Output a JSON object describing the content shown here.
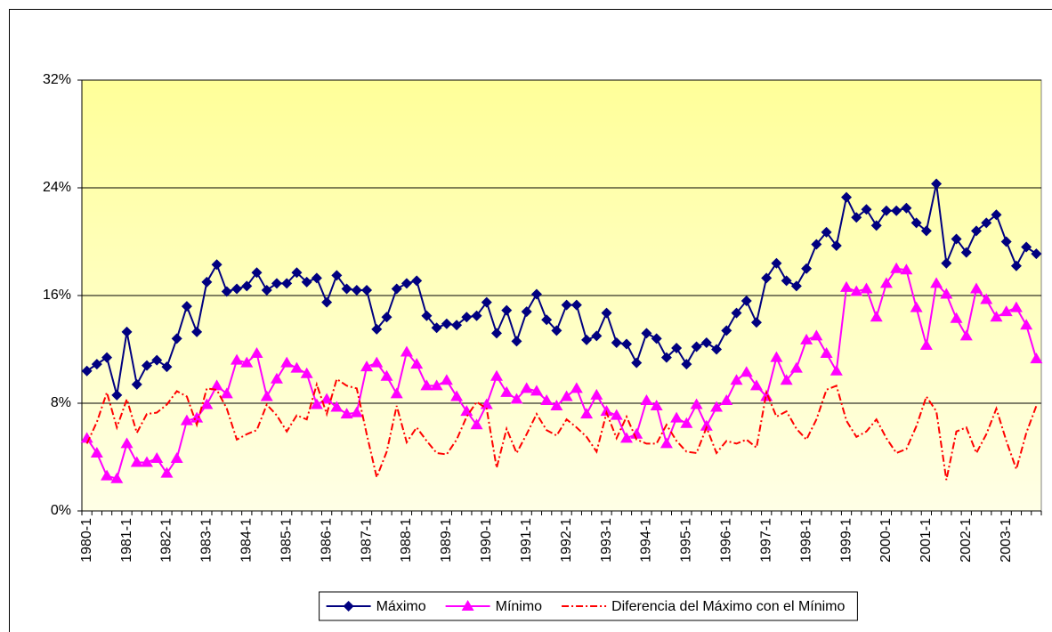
{
  "chart_data": {
    "type": "line",
    "categories": [
      "1980-1",
      null,
      null,
      null,
      "1981-1",
      null,
      null,
      null,
      "1982-1",
      null,
      null,
      null,
      "1983-1",
      null,
      null,
      null,
      "1984-1",
      null,
      null,
      null,
      "1985-1",
      null,
      null,
      null,
      "1986-1",
      null,
      null,
      null,
      "1987-1",
      null,
      null,
      null,
      "1988-1",
      null,
      null,
      null,
      "1989-1",
      null,
      null,
      null,
      "1990-1",
      null,
      null,
      null,
      "1991-1",
      null,
      null,
      null,
      "1992-1",
      null,
      null,
      null,
      "1993-1",
      null,
      null,
      null,
      "1994-1",
      null,
      null,
      null,
      "1995-1",
      null,
      null,
      null,
      "1996-1",
      null,
      null,
      null,
      "1997-1",
      null,
      null,
      null,
      "1998-1",
      null,
      null,
      null,
      "1999-1",
      null,
      null,
      null,
      "2000-1",
      null,
      null,
      null,
      "2001-1",
      null,
      null,
      null,
      "2002-1",
      null,
      null,
      null,
      "2003-1",
      null,
      null,
      null
    ],
    "series": [
      {
        "name": "Máximo",
        "color": "#000080",
        "marker": "diamond",
        "values": [
          10.4,
          10.9,
          11.4,
          8.6,
          13.3,
          9.4,
          10.8,
          11.2,
          10.7,
          12.8,
          15.2,
          13.3,
          17.0,
          18.3,
          16.3,
          16.5,
          16.7,
          17.7,
          16.4,
          16.9,
          16.9,
          17.7,
          17.0,
          17.3,
          15.5,
          17.5,
          16.5,
          16.4,
          16.4,
          13.5,
          14.4,
          16.5,
          16.9,
          17.1,
          14.5,
          13.6,
          13.9,
          13.8,
          14.4,
          14.5,
          15.5,
          13.2,
          14.9,
          12.6,
          14.8,
          16.1,
          14.2,
          13.4,
          15.3,
          15.3,
          12.7,
          13.0,
          14.7,
          12.5,
          12.4,
          11.0,
          13.2,
          12.8,
          11.4,
          12.1,
          10.9,
          12.2,
          12.5,
          12.0,
          13.4,
          14.7,
          15.6,
          14.0,
          17.3,
          18.4,
          17.1,
          16.7,
          18.0,
          19.8,
          20.7,
          19.7,
          23.3,
          21.8,
          22.4,
          21.2,
          22.3,
          22.3,
          22.5,
          21.4,
          20.8,
          24.3,
          18.4,
          20.2,
          19.2,
          20.8,
          21.4,
          22.0,
          20.0,
          18.2,
          19.6,
          19.1
        ]
      },
      {
        "name": "Mínimo",
        "color": "#ff00ff",
        "marker": "triangle",
        "values": [
          5.4,
          4.3,
          2.6,
          2.4,
          5.0,
          3.6,
          3.6,
          3.9,
          2.8,
          3.9,
          6.7,
          6.9,
          7.9,
          9.3,
          8.7,
          11.2,
          11.0,
          11.7,
          8.5,
          9.8,
          11.0,
          10.6,
          10.2,
          7.9,
          8.3,
          7.7,
          7.2,
          7.3,
          10.7,
          11.0,
          10.0,
          8.7,
          11.8,
          10.9,
          9.3,
          9.3,
          9.7,
          8.5,
          7.4,
          6.4,
          7.9,
          10.0,
          8.8,
          8.3,
          9.1,
          8.9,
          8.2,
          7.8,
          8.5,
          9.1,
          7.2,
          8.6,
          7.4,
          7.1,
          5.4,
          5.7,
          8.2,
          7.8,
          5.0,
          6.9,
          6.5,
          7.9,
          6.3,
          7.7,
          8.2,
          9.7,
          10.3,
          9.3,
          8.5,
          11.4,
          9.7,
          10.6,
          12.7,
          13.0,
          11.7,
          10.4,
          16.6,
          16.3,
          16.5,
          14.4,
          16.9,
          18.0,
          17.9,
          15.1,
          12.3,
          16.9,
          16.1,
          14.3,
          13.0,
          16.5,
          15.7,
          14.4,
          14.8,
          15.1,
          13.8,
          11.3
        ]
      },
      {
        "name": "Diferencia del Máximo con el Mínimo",
        "color": "#ff0000",
        "marker": "none",
        "dash": "8,3,2,3",
        "values": [
          5.0,
          6.6,
          8.8,
          6.2,
          8.3,
          5.8,
          7.2,
          7.3,
          7.9,
          8.9,
          8.5,
          6.4,
          9.1,
          9.0,
          7.6,
          5.3,
          5.7,
          6.0,
          7.9,
          7.1,
          5.9,
          7.1,
          6.8,
          9.4,
          7.2,
          9.8,
          9.3,
          9.1,
          5.7,
          2.5,
          4.4,
          7.8,
          5.1,
          6.2,
          5.2,
          4.3,
          4.2,
          5.3,
          7.0,
          8.1,
          7.6,
          3.2,
          6.1,
          4.3,
          5.7,
          7.2,
          6.0,
          5.6,
          6.8,
          6.2,
          5.5,
          4.4,
          7.3,
          5.4,
          7.0,
          5.3,
          5.0,
          5.0,
          6.4,
          5.2,
          4.4,
          4.3,
          6.2,
          4.3,
          5.2,
          5.0,
          5.3,
          4.7,
          8.8,
          7.0,
          7.4,
          6.1,
          5.3,
          6.8,
          9.0,
          9.3,
          6.7,
          5.5,
          5.9,
          6.8,
          5.4,
          4.3,
          4.6,
          6.3,
          8.5,
          7.4,
          2.3,
          5.9,
          6.2,
          4.3,
          5.7,
          7.6,
          5.2,
          3.1,
          5.8,
          7.8
        ]
      }
    ],
    "ylim": [
      0,
      32
    ],
    "yticks": [
      {
        "value": 0,
        "label": "0%"
      },
      {
        "value": 8,
        "label": "8%"
      },
      {
        "value": 16,
        "label": "16%"
      },
      {
        "value": 24,
        "label": "24%"
      },
      {
        "value": 32,
        "label": "32%"
      }
    ],
    "grid": true,
    "legend": "bottom"
  }
}
